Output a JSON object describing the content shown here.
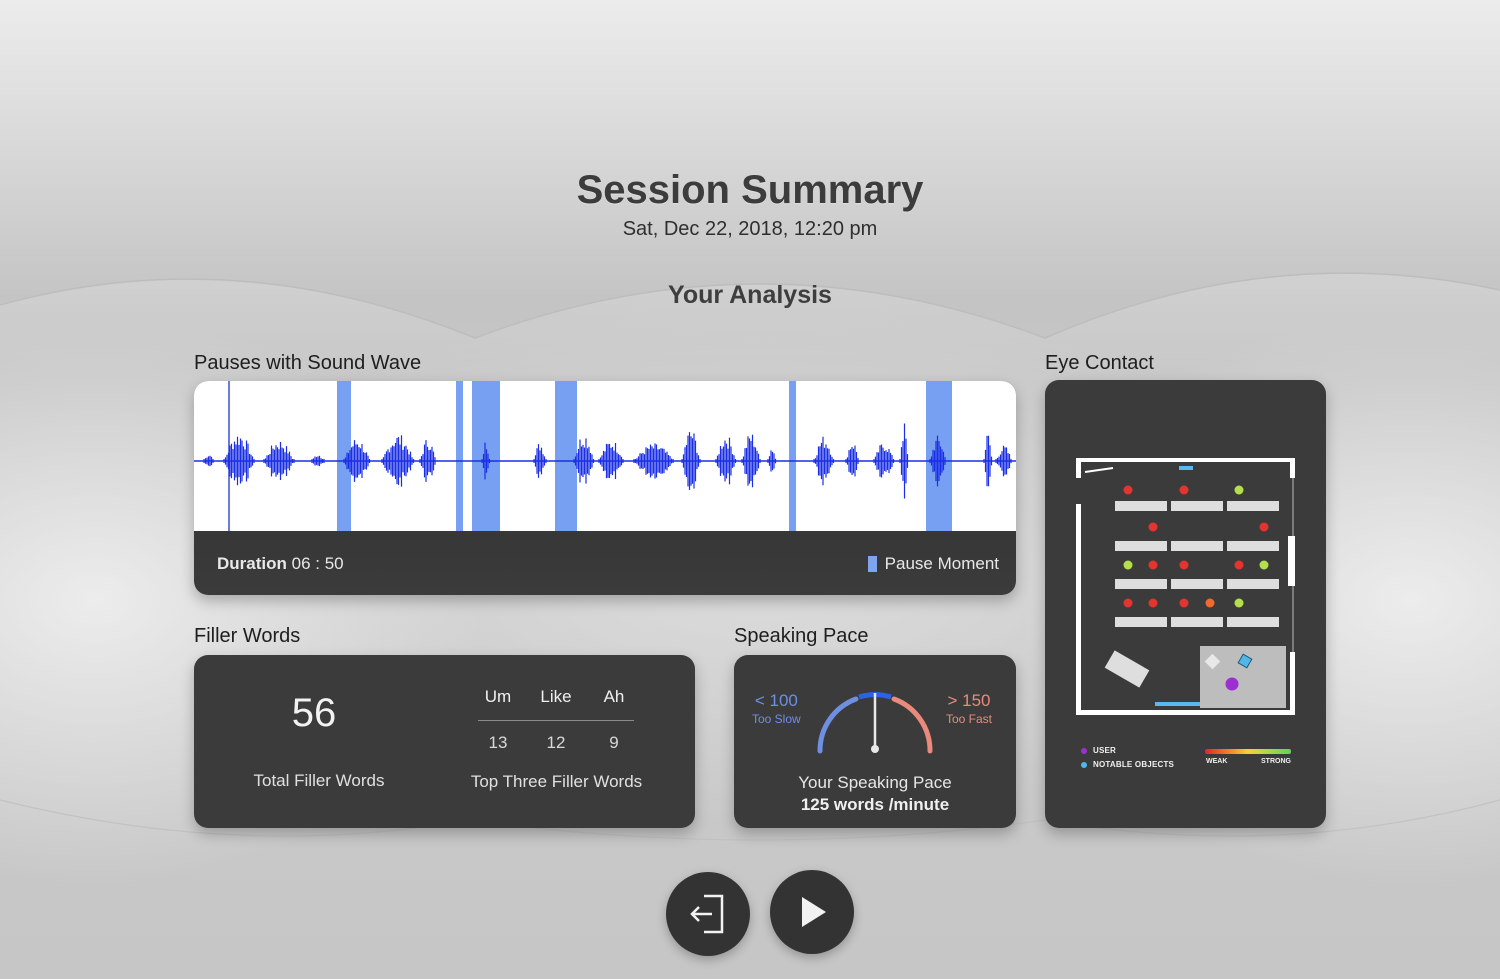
{
  "header": {
    "title": "Session Summary",
    "date": "Sat, Dec 22, 2018, 12:20 pm",
    "analysis_title": "Your Analysis"
  },
  "sound_wave": {
    "label": "Pauses with Sound Wave",
    "duration_label": "Duration",
    "duration_value": "06 : 50",
    "legend_label": "Pause Moment",
    "colors": {
      "wave": "#1a2ee6",
      "pause": "#5f8ef0",
      "background": "#ffffff"
    }
  },
  "filler_words": {
    "label": "Filler Words",
    "total": "56",
    "total_label": "Total Filler Words",
    "top_label": "Top Three Filler Words",
    "words": [
      {
        "word": "Um",
        "count": "13"
      },
      {
        "word": "Like",
        "count": "12"
      },
      {
        "word": "Ah",
        "count": "9"
      }
    ]
  },
  "speaking_pace": {
    "label": "Speaking Pace",
    "slow_value": "< 100",
    "slow_label": "Too Slow",
    "fast_value": "> 150",
    "fast_label": "Too Fast",
    "pace_label": "Your Speaking Pace",
    "pace_value": "125 words /minute",
    "colors": {
      "slow": "#6f8fe2",
      "fast": "#e98a7d",
      "normal": "#2a63e8"
    }
  },
  "eye_contact": {
    "label": "Eye Contact",
    "legend_user": "USER",
    "legend_objects": "NOTABLE OBJECTS",
    "scale_weak": "WEAK",
    "scale_strong": "STRONG",
    "colors": {
      "user": "#9b2fd1",
      "objects": "#4fb8e8",
      "weak": "#e0262a",
      "strong": "#5dd54f"
    }
  },
  "controls": {
    "exit_icon": "exit-icon",
    "play_icon": "play-icon"
  }
}
